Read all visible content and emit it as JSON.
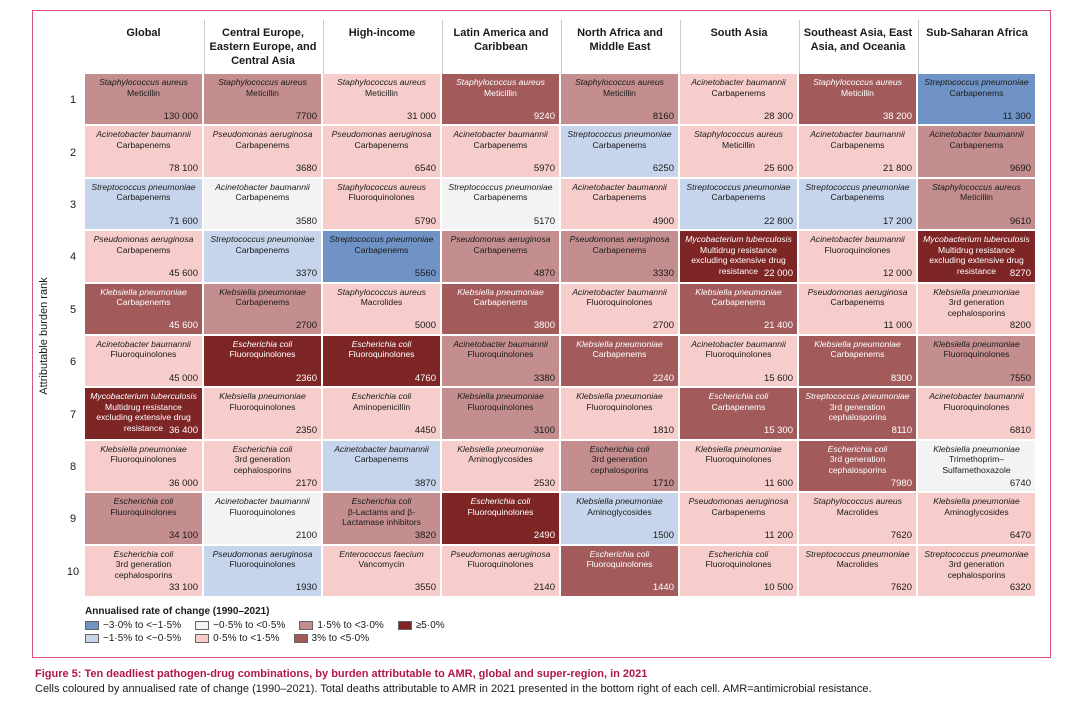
{
  "y_axis_label": "Attributable burden rank",
  "columns": [
    "Global",
    "Central Europe, Eastern Europe, and Central Asia",
    "High-income",
    "Latin America and Caribbean",
    "North Africa and Middle East",
    "South Asia",
    "Southeast Asia, East Asia, and Oceania",
    "Sub-Saharan Africa"
  ],
  "ranks": [
    "1",
    "2",
    "3",
    "4",
    "5",
    "6",
    "7",
    "8",
    "9",
    "10"
  ],
  "legend": {
    "title": "Annualised rate of change (1990–2021)",
    "items": [
      {
        "label": "−3·0% to <−1·5%",
        "color": "#6f93c4"
      },
      {
        "label": "−0·5% to <0·5%",
        "color": "#f3f3f3"
      },
      {
        "label": "1·5% to <3·0%",
        "color": "#c48e8e"
      },
      {
        "label": "≥5·0%",
        "color": "#7e2526"
      },
      {
        "label": "−1·5% to <−0·5%",
        "color": "#c6d5ec"
      },
      {
        "label": "0·5% to <1·5%",
        "color": "#f6cdcb"
      },
      {
        "label": "3% to <5·0%",
        "color": "#a25a5b"
      }
    ]
  },
  "colors": {
    "c1": "#6f93c4",
    "c2": "#c6d5ec",
    "c3": "#f3f3f3",
    "c4": "#f6cdcb",
    "c5": "#c48e8e",
    "c6": "#a25a5b",
    "c7": "#7e2526"
  },
  "cells": [
    [
      {
        "p": "Staphylococcus aureus",
        "d": "Meticillin",
        "v": "130 000",
        "c": "c5"
      },
      {
        "p": "Acinetobacter baumannii",
        "d": "Carbapenems",
        "v": "78 100",
        "c": "c4"
      },
      {
        "p": "Streptococcus pneumoniae",
        "d": "Carbapenems",
        "v": "71 600",
        "c": "c2"
      },
      {
        "p": "Pseudomonas aeruginosa",
        "d": "Carbapenems",
        "v": "45 600",
        "c": "c4"
      },
      {
        "p": "Klebsiella pneumoniae",
        "d": "Carbapenems",
        "v": "45 600",
        "c": "c6"
      },
      {
        "p": "Acinetobacter baumannii",
        "d": "Fluoroquinolones",
        "v": "45 000",
        "c": "c4"
      },
      {
        "p": "Mycobacterium tuberculosis",
        "d": "Multidrug resistance excluding extensive drug resistance",
        "v": "36 400",
        "c": "c7"
      },
      {
        "p": "Klebsiella pneumoniae",
        "d": "Fluoroquinolones",
        "v": "36 000",
        "c": "c4"
      },
      {
        "p": "Escherichia coli",
        "d": "Fluoroquinolones",
        "v": "34 100",
        "c": "c5"
      },
      {
        "p": "Escherichia coli",
        "d": "3rd generation cephalosporins",
        "v": "33 100",
        "c": "c4"
      }
    ],
    [
      {
        "p": "Staphylococcus aureus",
        "d": "Meticillin",
        "v": "7700",
        "c": "c5"
      },
      {
        "p": "Pseudomonas aeruginosa",
        "d": "Carbapenems",
        "v": "3680",
        "c": "c4"
      },
      {
        "p": "Acinetobacter baumannii",
        "d": "Carbapenems",
        "v": "3580",
        "c": "c3"
      },
      {
        "p": "Streptococcus pneumoniae",
        "d": "Carbapenems",
        "v": "3370",
        "c": "c2"
      },
      {
        "p": "Klebsiella pneumoniae",
        "d": "Carbapenems",
        "v": "2700",
        "c": "c5"
      },
      {
        "p": "Escherichia coli",
        "d": "Fluoroquinolones",
        "v": "2360",
        "c": "c7"
      },
      {
        "p": "Klebsiella pneumoniae",
        "d": "Fluoroquinolones",
        "v": "2350",
        "c": "c4"
      },
      {
        "p": "Escherichia coli",
        "d": "3rd generation cephalosporins",
        "v": "2170",
        "c": "c4"
      },
      {
        "p": "Acinetobacter baumannii",
        "d": "Fluoroquinolones",
        "v": "2100",
        "c": "c3"
      },
      {
        "p": "Pseudomonas aeruginosa",
        "d": "Fluoroquinolones",
        "v": "1930",
        "c": "c2"
      }
    ],
    [
      {
        "p": "Staphylococcus aureus",
        "d": "Meticillin",
        "v": "31 000",
        "c": "c4"
      },
      {
        "p": "Pseudomonas aeruginosa",
        "d": "Carbapenems",
        "v": "6540",
        "c": "c4"
      },
      {
        "p": "Staphylococcus aureus",
        "d": "Fluoroquinolones",
        "v": "5790",
        "c": "c4"
      },
      {
        "p": "Streptococcus pneumoniae",
        "d": "Carbapenems",
        "v": "5560",
        "c": "c1"
      },
      {
        "p": "Staphylococcus aureus",
        "d": "Macrolides",
        "v": "5000",
        "c": "c4"
      },
      {
        "p": "Escherichia coli",
        "d": "Fluoroquinolones",
        "v": "4760",
        "c": "c7"
      },
      {
        "p": "Escherichia coli",
        "d": "Aminopenicillin",
        "v": "4450",
        "c": "c4"
      },
      {
        "p": "Acinetobacter baumannii",
        "d": "Carbapenems",
        "v": "3870",
        "c": "c2"
      },
      {
        "p": "Escherichia coli",
        "d": "β-Lactams and β-Lactamase inhibitors",
        "v": "3820",
        "c": "c5"
      },
      {
        "p": "Enterococcus faecium",
        "d": "Vancomycin",
        "v": "3550",
        "c": "c4"
      }
    ],
    [
      {
        "p": "Staphylococcus aureus",
        "d": "Meticillin",
        "v": "9240",
        "c": "c6"
      },
      {
        "p": "Acinetobacter baumannii",
        "d": "Carbapenems",
        "v": "5970",
        "c": "c4"
      },
      {
        "p": "Streptococcus pneumoniae",
        "d": "Carbapenems",
        "v": "5170",
        "c": "c3"
      },
      {
        "p": "Pseudomonas aeruginosa",
        "d": "Carbapenems",
        "v": "4870",
        "c": "c5"
      },
      {
        "p": "Klebsiella pneumoniae",
        "d": "Carbapenems",
        "v": "3800",
        "c": "c6"
      },
      {
        "p": "Acinetobacter baumannii",
        "d": "Fluoroquinolones",
        "v": "3380",
        "c": "c5"
      },
      {
        "p": "Klebsiella pneumoniae",
        "d": "Fluoroquinolones",
        "v": "3100",
        "c": "c5"
      },
      {
        "p": "Klebsiella pneumoniae",
        "d": "Aminoglycosides",
        "v": "2530",
        "c": "c4"
      },
      {
        "p": "Escherichia coli",
        "d": "Fluoroquinolones",
        "v": "2490",
        "c": "c7"
      },
      {
        "p": "Pseudomonas aeruginosa",
        "d": "Fluoroquinolones",
        "v": "2140",
        "c": "c4"
      }
    ],
    [
      {
        "p": "Staphylococcus aureus",
        "d": "Meticillin",
        "v": "8160",
        "c": "c5"
      },
      {
        "p": "Streptococcus pneumoniae",
        "d": "Carbapenems",
        "v": "6250",
        "c": "c2"
      },
      {
        "p": "Acinetobacter baumannii",
        "d": "Carbapenems",
        "v": "4900",
        "c": "c4"
      },
      {
        "p": "Pseudomonas aeruginosa",
        "d": "Carbapenems",
        "v": "3330",
        "c": "c5"
      },
      {
        "p": "Acinetobacter baumannii",
        "d": "Fluoroquinolones",
        "v": "2700",
        "c": "c4"
      },
      {
        "p": "Klebsiella pneumoniae",
        "d": "Carbapenems",
        "v": "2240",
        "c": "c6"
      },
      {
        "p": "Klebsiella pneumoniae",
        "d": "Fluoroquinolones",
        "v": "1810",
        "c": "c4"
      },
      {
        "p": "Escherichia coli",
        "d": "3rd generation cephalosporins",
        "v": "1710",
        "c": "c5"
      },
      {
        "p": "Klebsiella pneumoniae",
        "d": "Aminoglycosides",
        "v": "1500",
        "c": "c2"
      },
      {
        "p": "Escherichia coli",
        "d": "Fluoroquinolones",
        "v": "1440",
        "c": "c6"
      }
    ],
    [
      {
        "p": "Acinetobacter baumannii",
        "d": "Carbapenems",
        "v": "28 300",
        "c": "c4"
      },
      {
        "p": "Staphylococcus aureus",
        "d": "Meticillin",
        "v": "25 600",
        "c": "c4"
      },
      {
        "p": "Streptococcus pneumoniae",
        "d": "Carbapenems",
        "v": "22 800",
        "c": "c2"
      },
      {
        "p": "Mycobacterium tuberculosis",
        "d": "Multidrug resistance excluding extensive drug resistance",
        "v": "22 000",
        "c": "c7"
      },
      {
        "p": "Klebsiella pneumoniae",
        "d": "Carbapenems",
        "v": "21 400",
        "c": "c6"
      },
      {
        "p": "Acinetobacter baumannii",
        "d": "Fluoroquinolones",
        "v": "15 600",
        "c": "c4"
      },
      {
        "p": "Escherichia coli",
        "d": "Carbapenems",
        "v": "15 300",
        "c": "c6"
      },
      {
        "p": "Klebsiella pneumoniae",
        "d": "Fluoroquinolones",
        "v": "11 600",
        "c": "c4"
      },
      {
        "p": "Pseudomonas aeruginosa",
        "d": "Carbapenems",
        "v": "11 200",
        "c": "c4"
      },
      {
        "p": "Escherichia coli",
        "d": "Fluoroquinolones",
        "v": "10 500",
        "c": "c4"
      }
    ],
    [
      {
        "p": "Staphylococcus aureus",
        "d": "Meticillin",
        "v": "38 200",
        "c": "c6"
      },
      {
        "p": "Acinetobacter baumannii",
        "d": "Carbapenems",
        "v": "21 800",
        "c": "c4"
      },
      {
        "p": "Streptococcus pneumoniae",
        "d": "Carbapenems",
        "v": "17 200",
        "c": "c2"
      },
      {
        "p": "Acinetobacter baumannii",
        "d": "Fluoroquinolones",
        "v": "12 000",
        "c": "c4"
      },
      {
        "p": "Pseudomonas aeruginosa",
        "d": "Carbapenems",
        "v": "11 000",
        "c": "c4"
      },
      {
        "p": "Klebsiella pneumoniae",
        "d": "Carbapenems",
        "v": "8300",
        "c": "c6"
      },
      {
        "p": "Streptococcus pneumoniae",
        "d": "3rd generation cephalosporins",
        "v": "8110",
        "c": "c6"
      },
      {
        "p": "Escherichia coli",
        "d": "3rd generation cephalosporins",
        "v": "7980",
        "c": "c6"
      },
      {
        "p": "Staphylococcus aureus",
        "d": "Macrolides",
        "v": "7620",
        "c": "c4"
      },
      {
        "p": "Streptococcus pneumoniae",
        "d": "Macrolides",
        "v": "7620",
        "c": "c4"
      }
    ],
    [
      {
        "p": "Streptococcus pneumoniae",
        "d": "Carbapenems",
        "v": "11 300",
        "c": "c1"
      },
      {
        "p": "Acinetobacter baumannii",
        "d": "Carbapenems",
        "v": "9690",
        "c": "c5"
      },
      {
        "p": "Staphylococcus aureus",
        "d": "Meticillin",
        "v": "9610",
        "c": "c5"
      },
      {
        "p": "Mycobacterium tuberculosis",
        "d": "Multidrug resistance excluding extensive drug resistance",
        "v": "8270",
        "c": "c7"
      },
      {
        "p": "Klebsiella pneumoniae",
        "d": "3rd generation cephalosporins",
        "v": "8200",
        "c": "c4"
      },
      {
        "p": "Klebsiella pneumoniae",
        "d": "Fluoroquinolones",
        "v": "7550",
        "c": "c5"
      },
      {
        "p": "Acinetobacter baumannii",
        "d": "Fluoroquinolones",
        "v": "6810",
        "c": "c4"
      },
      {
        "p": "Klebsiella pneumoniae",
        "d": "Trimethoprim–Sulfamethoxazole",
        "v": "6740",
        "c": "c3"
      },
      {
        "p": "Klebsiella pneumoniae",
        "d": "Aminoglycosides",
        "v": "6470",
        "c": "c4"
      },
      {
        "p": "Streptococcus pneumoniae",
        "d": "3rd generation cephalosporins",
        "v": "6320",
        "c": "c4"
      }
    ]
  ],
  "caption": {
    "title": "Figure 5: Ten deadliest pathogen-drug combinations, by burden attributable to AMR, global and super-region, in 2021",
    "text": "Cells coloured by annualised rate of change (1990–2021). Total deaths attributable to AMR in 2021 presented in the bottom right of each cell. AMR=antimicrobial resistance."
  }
}
